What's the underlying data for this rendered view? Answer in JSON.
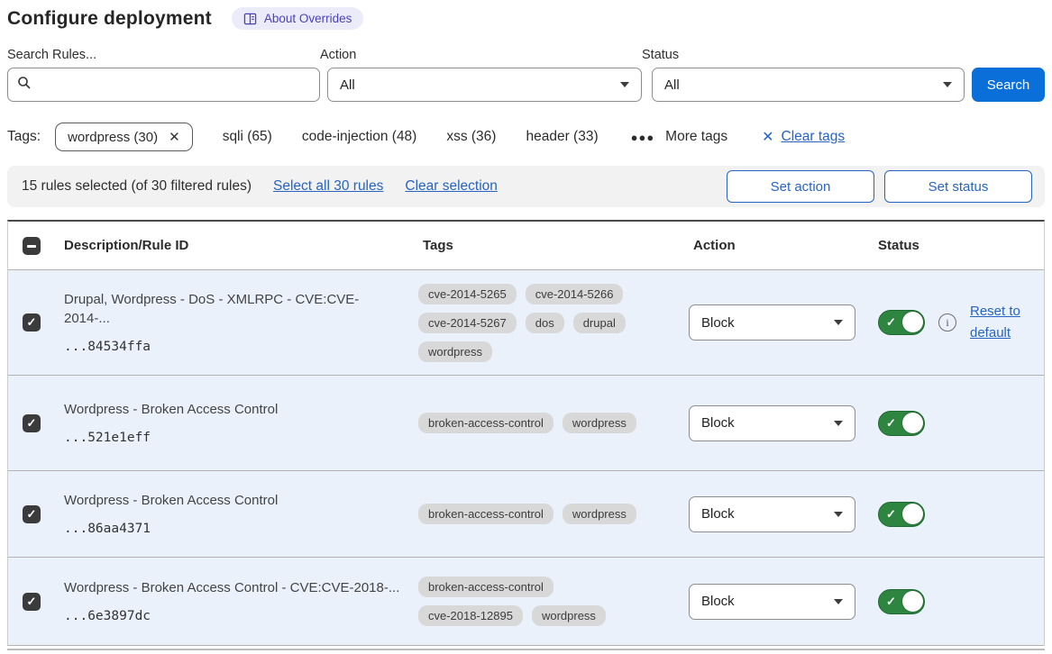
{
  "page": {
    "title": "Configure deployment"
  },
  "about_badge": {
    "label": "About Overrides",
    "icon": "book-icon"
  },
  "filters": {
    "search": {
      "label": "Search Rules...",
      "value": "",
      "icon": "search-icon"
    },
    "action": {
      "label": "Action",
      "value": "All"
    },
    "status": {
      "label": "Status",
      "value": "All"
    },
    "search_button": "Search"
  },
  "tags_bar": {
    "label": "Tags:",
    "selected_tag": {
      "label": "wordpress (30)",
      "close_icon": "x-icon"
    },
    "tags": [
      "sqli (65)",
      "code-injection (48)",
      "xss (36)",
      "header (33)"
    ],
    "more_tags": {
      "icon": "ellipsis-icon",
      "label": "More tags"
    },
    "clear_tags": {
      "icon": "x-icon",
      "label": "Clear tags"
    }
  },
  "selection_bar": {
    "summary": "15 rules selected (of 30 filtered rules)",
    "select_all_label": "Select all 30 rules",
    "clear_selection_label": "Clear selection",
    "set_action_label": "Set action",
    "set_status_label": "Set status"
  },
  "table": {
    "header": {
      "select_all_checkbox_state": "indeterminate",
      "description": "Description/Rule ID",
      "tags": "Tags",
      "action": "Action",
      "status": "Status"
    },
    "rows": [
      {
        "checked": true,
        "description": "Drupal, Wordpress - DoS - XMLRPC - CVE:CVE-2014-...",
        "rule_id": "...84534ffa",
        "tags": [
          "cve-2014-5265",
          "cve-2014-5266",
          "cve-2014-5267",
          "dos",
          "drupal",
          "wordpress"
        ],
        "action": "Block",
        "enabled": true,
        "has_reset": true,
        "reset_label": "Reset to default"
      },
      {
        "checked": true,
        "description": "Wordpress - Broken Access Control",
        "rule_id": "...521e1eff",
        "tags": [
          "broken-access-control",
          "wordpress"
        ],
        "action": "Block",
        "enabled": true,
        "has_reset": false
      },
      {
        "checked": true,
        "description": "Wordpress - Broken Access Control",
        "rule_id": "...86aa4371",
        "tags": [
          "broken-access-control",
          "wordpress"
        ],
        "action": "Block",
        "enabled": true,
        "has_reset": false
      },
      {
        "checked": true,
        "description": "Wordpress - Broken Access Control - CVE:CVE-2018-...",
        "rule_id": "...6e3897dc",
        "tags": [
          "broken-access-control",
          "cve-2018-12895",
          "wordpress"
        ],
        "action": "Block",
        "enabled": true,
        "has_reset": false
      }
    ]
  },
  "colors": {
    "accent-blue": "#0b6fd9",
    "link-blue": "#2764c1",
    "toggle-green": "#2e8540",
    "row-blue": "#eaf1fb",
    "pill-bg": "#d8d8d8",
    "badge-bg": "#ecebfa",
    "badge-text": "#4c42b8"
  }
}
